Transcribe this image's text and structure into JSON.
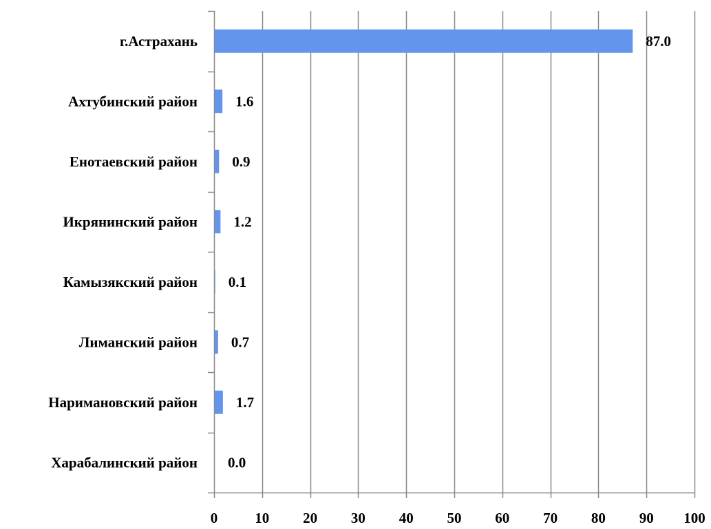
{
  "chart_data": {
    "type": "bar",
    "orientation": "horizontal",
    "categories": [
      "г.Астрахань",
      "Ахтубинский район",
      "Енотаевский район",
      "Икрянинский район",
      "Камызякский район",
      "Лиманский район",
      "Наримановский район",
      "Харабалинский район"
    ],
    "values": [
      87.0,
      1.6,
      0.9,
      1.2,
      0.1,
      0.7,
      1.7,
      0.0
    ],
    "value_labels": [
      "87.0",
      "1.6",
      "0.9",
      "1.2",
      "0.1",
      "0.7",
      "1.7",
      "0.0"
    ],
    "xlim": [
      0,
      100
    ],
    "xticks": [
      0,
      10,
      20,
      30,
      40,
      50,
      60,
      70,
      80,
      90,
      100
    ],
    "tick_labels": [
      "0",
      "10",
      "20",
      "30",
      "40",
      "50",
      "60",
      "70",
      "80",
      "90",
      "100"
    ],
    "title": "",
    "xlabel": "",
    "ylabel": "",
    "grid": "vertical",
    "legend": "none",
    "colors": {
      "bar": "#6495ED",
      "grid": "#888888",
      "axis": "#888888",
      "text": "#000000"
    }
  }
}
